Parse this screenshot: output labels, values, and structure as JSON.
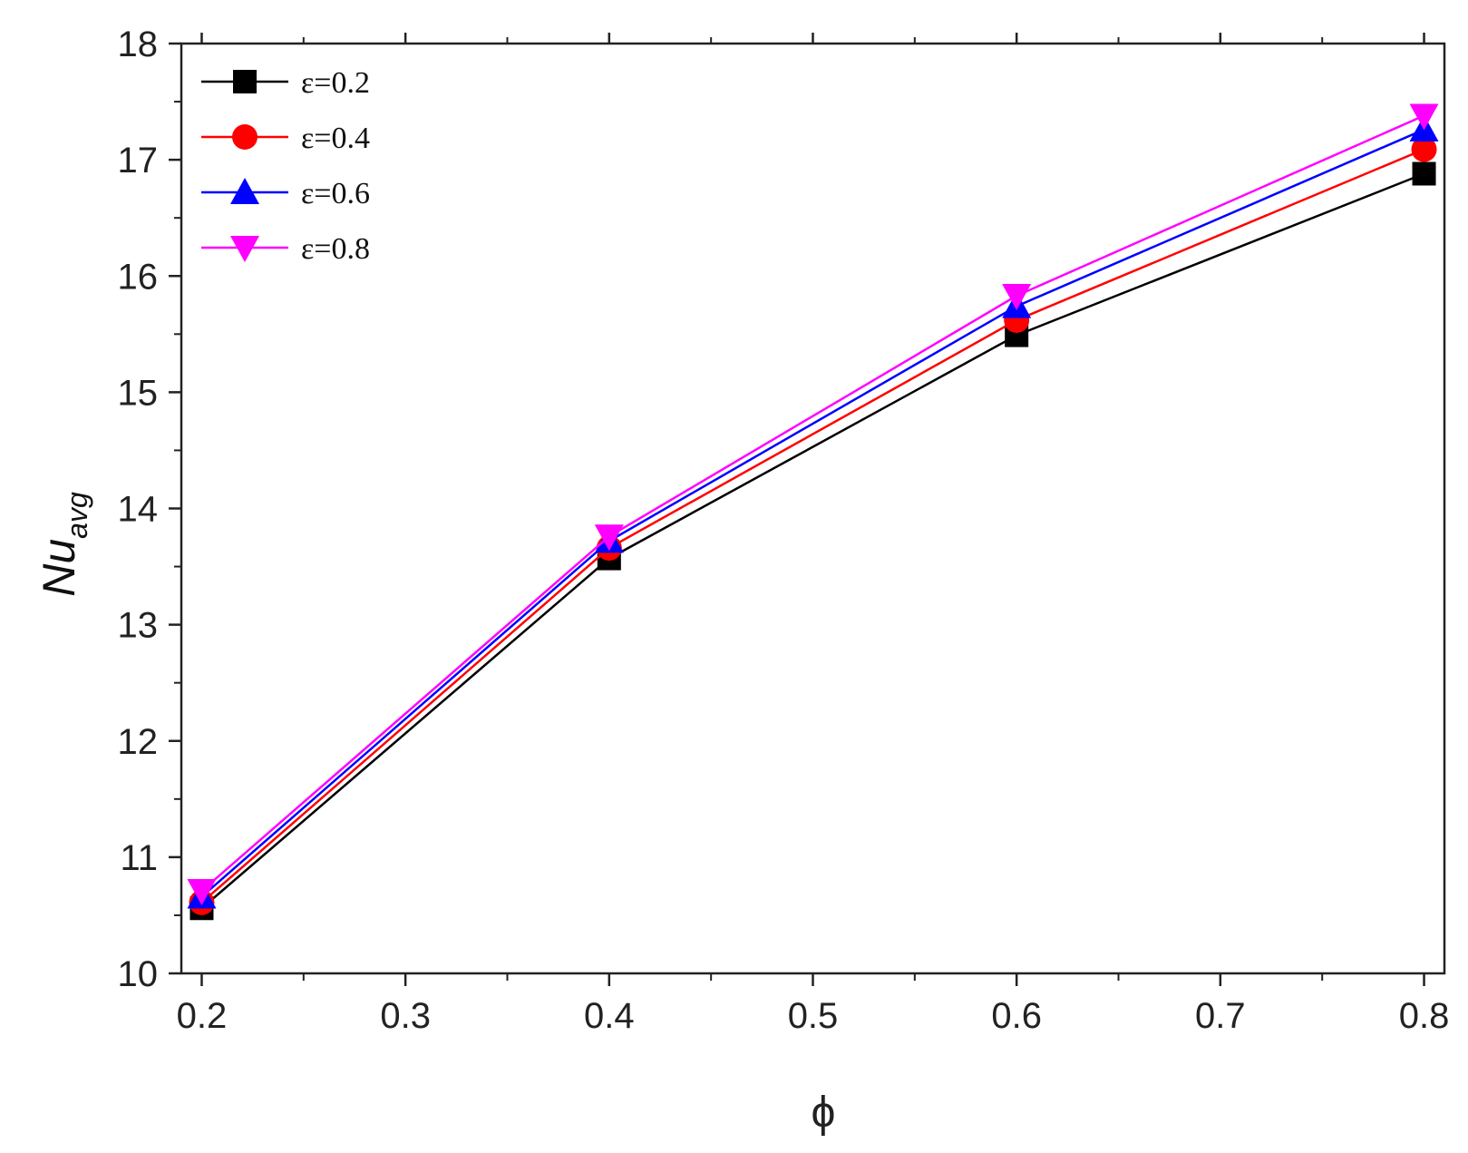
{
  "chart_data": {
    "type": "line",
    "xlabel": "ϕ",
    "ylabel": {
      "main": "Nu",
      "subscript": "avg"
    },
    "xlim": [
      0.19,
      0.81
    ],
    "ylim": [
      10,
      18
    ],
    "xticks": [
      "0.2",
      "0.3",
      "0.4",
      "0.5",
      "0.6",
      "0.7",
      "0.8"
    ],
    "yticks": [
      "10",
      "11",
      "12",
      "13",
      "14",
      "15",
      "16",
      "17",
      "18"
    ],
    "grid": false,
    "legend_position": "top-left",
    "x": [
      0.2,
      0.4,
      0.6,
      0.8
    ],
    "series": [
      {
        "name": "ε=0.2",
        "color": "#000000",
        "marker": "square",
        "values": [
          10.56,
          13.57,
          15.49,
          16.88
        ]
      },
      {
        "name": "ε=0.4",
        "color": "#ff0000",
        "marker": "circle",
        "values": [
          10.61,
          13.66,
          15.62,
          17.09
        ]
      },
      {
        "name": "ε=0.6",
        "color": "#0000ff",
        "marker": "triangle-up",
        "values": [
          10.66,
          13.72,
          15.74,
          17.26
        ]
      },
      {
        "name": "ε=0.8",
        "color": "#ff00ff",
        "marker": "triangle-down",
        "values": [
          10.71,
          13.76,
          15.83,
          17.38
        ]
      }
    ]
  }
}
